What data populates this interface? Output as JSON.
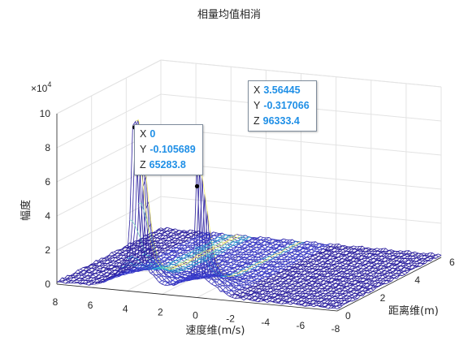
{
  "chart_data": {
    "type": "surface",
    "title": "相量均值相消",
    "xlabel": "速度维(m/s)",
    "ylabel": "距离维(m)",
    "zlabel": "幅度",
    "z_exponent_label": "×10",
    "z_exponent_power": "4",
    "xlim": [
      -8,
      8
    ],
    "ylim": [
      0,
      6
    ],
    "zlim": [
      0,
      100000
    ],
    "xticks": [
      "8",
      "6",
      "4",
      "2",
      "0",
      "-2",
      "-4",
      "-6",
      "-8"
    ],
    "yticks": [
      "0",
      "2",
      "4",
      "6"
    ],
    "zticks": [
      "0",
      "2",
      "4",
      "6",
      "8",
      "10"
    ],
    "grid": true,
    "colormap": [
      "#2b1f9e",
      "#3a3fd0",
      "#2fa6d8",
      "#7fe0c8",
      "#f7f26b"
    ],
    "peaks": [
      {
        "x": 0,
        "y": -0.105689,
        "z": 65283.8
      },
      {
        "x": 3.56445,
        "y": -0.317066,
        "z": 96333.4
      }
    ],
    "datatips": [
      {
        "x_label": "X",
        "x_value": "0",
        "y_label": "Y",
        "y_value": "-0.105689",
        "z_label": "Z",
        "z_value": "65283.8"
      },
      {
        "x_label": "X",
        "x_value": "3.56445",
        "y_label": "Y",
        "y_value": "-0.317066",
        "z_label": "Z",
        "z_value": "96333.4"
      }
    ]
  }
}
